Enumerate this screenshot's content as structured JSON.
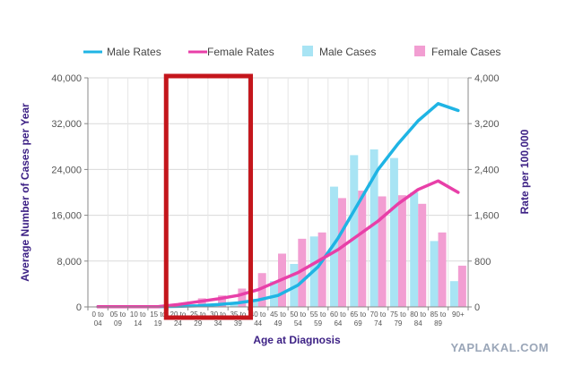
{
  "chart_data": {
    "type": "bar",
    "xlabel": "Age at Diagnosis",
    "ylabel_left": "Average Number of Cases per Year",
    "ylabel_right": "Rate per 100,000",
    "ylim_left": [
      0,
      40000
    ],
    "ylim_right": [
      0,
      4000
    ],
    "yticks_left": [
      "0",
      "8,000",
      "16,000",
      "24,000",
      "32,000",
      "40,000"
    ],
    "yticks_right": [
      "0",
      "800",
      "1,600",
      "2,400",
      "3,200",
      "4,000"
    ],
    "legend_position": "top",
    "grid": true,
    "categories": [
      [
        "0 to",
        "04"
      ],
      [
        "05 to",
        "09"
      ],
      [
        "10 to",
        "14"
      ],
      [
        "15 to",
        "19"
      ],
      [
        "20 to",
        "24"
      ],
      [
        "25 to",
        "29"
      ],
      [
        "30 to",
        "34"
      ],
      [
        "35 to",
        "39"
      ],
      [
        "40 to",
        "44"
      ],
      [
        "45 to",
        "49"
      ],
      [
        "50 to",
        "54"
      ],
      [
        "55 to",
        "59"
      ],
      [
        "60 to",
        "64"
      ],
      [
        "65 to",
        "69"
      ],
      [
        "70 to",
        "74"
      ],
      [
        "75 to",
        "79"
      ],
      [
        "80 to",
        "84"
      ],
      [
        "85 to",
        "89"
      ],
      [
        "90+",
        ""
      ]
    ],
    "series": [
      {
        "name": "Male Rates",
        "kind": "line",
        "axis": "right",
        "color": "#1fb4e4",
        "values": [
          3,
          3,
          3,
          3,
          10,
          20,
          40,
          70,
          120,
          200,
          380,
          700,
          1200,
          1800,
          2400,
          2850,
          3250,
          3550,
          3430
        ]
      },
      {
        "name": "Female Rates",
        "kind": "line",
        "axis": "right",
        "color": "#e83fa8",
        "values": [
          3,
          3,
          3,
          3,
          40,
          90,
          140,
          200,
          300,
          450,
          600,
          800,
          1000,
          1250,
          1500,
          1800,
          2050,
          2200,
          2000
        ]
      },
      {
        "name": "Male Cases",
        "kind": "bar",
        "axis": "left",
        "color": "#a8e4f4",
        "values": [
          50,
          50,
          50,
          80,
          200,
          300,
          500,
          700,
          1200,
          4500,
          7500,
          12300,
          21000,
          26500,
          27500,
          26000,
          20000,
          11500,
          4500
        ]
      },
      {
        "name": "Female Cases",
        "kind": "bar",
        "axis": "left",
        "color": "#f29ed2",
        "values": [
          50,
          50,
          50,
          100,
          400,
          1500,
          2000,
          3200,
          5900,
          9300,
          11900,
          13000,
          19000,
          20300,
          19300,
          19500,
          18000,
          13000,
          7200
        ]
      }
    ]
  },
  "highlight_box": {
    "from_index": 4,
    "to_index": 7,
    "color": "#c4161c"
  },
  "watermark": "YAPLAKAL.COM"
}
